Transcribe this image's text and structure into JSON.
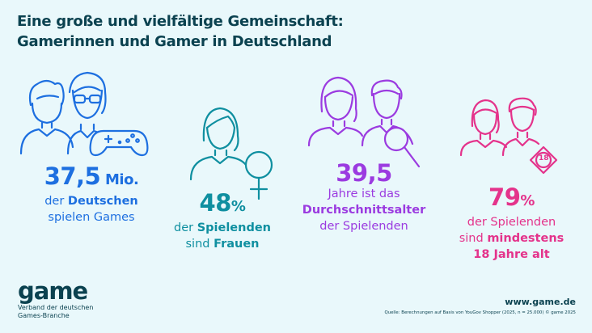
{
  "title": {
    "line1": "Eine große und vielfältige Gemeinschaft:",
    "line2": "Gamerinnen und Gamer in Deutschland"
  },
  "stats": [
    {
      "value": "37,5",
      "unit": " Mio.",
      "lines": [
        {
          "pre": "der ",
          "bold": "Deutschen",
          "post": ""
        },
        {
          "pre": "spielen Games",
          "bold": "",
          "post": ""
        }
      ],
      "color": "#1d6fe0"
    },
    {
      "value": "48",
      "unit": "%",
      "lines": [
        {
          "pre": "der ",
          "bold": "Spielenden",
          "post": ""
        },
        {
          "pre": "sind ",
          "bold": "Frauen",
          "post": ""
        }
      ],
      "color": "#0f8fa0"
    },
    {
      "value": "39,5",
      "unit": "",
      "lines": [
        {
          "pre": "Jahre ist das",
          "bold": "",
          "post": ""
        },
        {
          "pre": "",
          "bold": "Durchschnittsalter",
          "post": ""
        },
        {
          "pre": "der Spielenden",
          "bold": "",
          "post": ""
        }
      ],
      "color": "#9b3be0"
    },
    {
      "value": "79",
      "unit": "%",
      "lines": [
        {
          "pre": "der Spielenden",
          "bold": "",
          "post": ""
        },
        {
          "pre": "sind ",
          "bold": "mindestens",
          "post": ""
        },
        {
          "pre": "",
          "bold": "18 Jahre alt",
          "post": ""
        }
      ],
      "color": "#e4338b"
    }
  ],
  "age_badge": "18",
  "icons": [
    "family-with-controller-icon",
    "woman-with-female-symbol-icon",
    "couple-with-magnifier-icon",
    "couple-with-age-18-badge-icon"
  ],
  "logo": {
    "word": "game",
    "sub_line1": "Verband der deutschen",
    "sub_line2": "Games-Branche"
  },
  "url": "www.game.de",
  "source": "Quelle: Berechnungen auf Basis von YouGov Shopper (2025, n = 25.000) © game 2025"
}
